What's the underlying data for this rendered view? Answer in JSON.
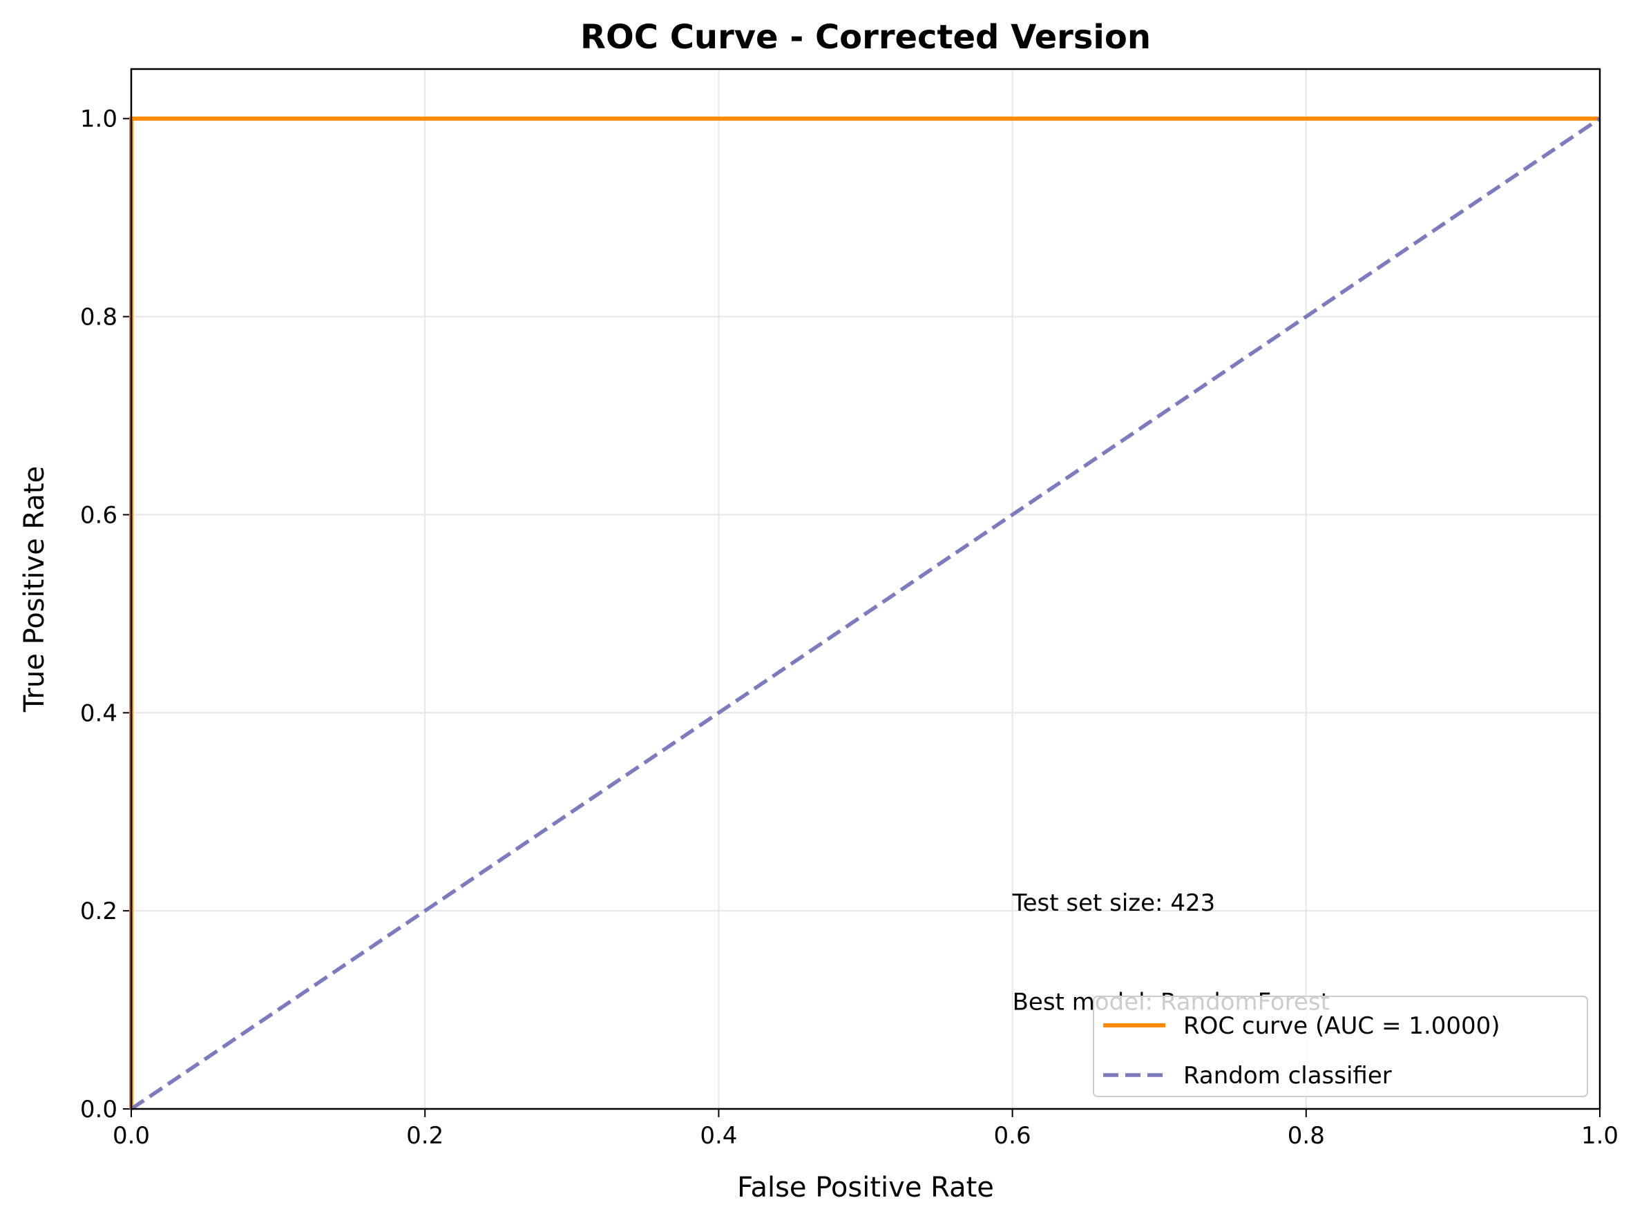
{
  "chart_data": {
    "type": "line",
    "title": "ROC Curve - Corrected Version",
    "xlabel": "False Positive Rate",
    "ylabel": "True Positive Rate",
    "xlim": [
      0.0,
      1.0
    ],
    "ylim": [
      0.0,
      1.05
    ],
    "xticks": [
      "0.0",
      "0.2",
      "0.4",
      "0.6",
      "0.8",
      "1.0"
    ],
    "yticks": [
      "0.0",
      "0.2",
      "0.4",
      "0.6",
      "0.8",
      "1.0"
    ],
    "grid": true,
    "legend_position": "lower-right",
    "series": [
      {
        "name": "ROC curve (AUC = 1.0000)",
        "color": "#ff8c00",
        "style": "solid",
        "x": [
          0.0,
          0.0,
          1.0
        ],
        "y": [
          0.0,
          1.0,
          1.0
        ]
      },
      {
        "name": "Random classifier",
        "color": "#7b7bbf",
        "style": "dashed",
        "x": [
          0.0,
          1.0
        ],
        "y": [
          0.0,
          1.0
        ]
      }
    ],
    "annotations": [
      {
        "text": "Test set size: 423",
        "x": 0.6,
        "y": 0.2
      },
      {
        "text": "Best model: RandomForest",
        "x": 0.6,
        "y": 0.1
      }
    ]
  }
}
